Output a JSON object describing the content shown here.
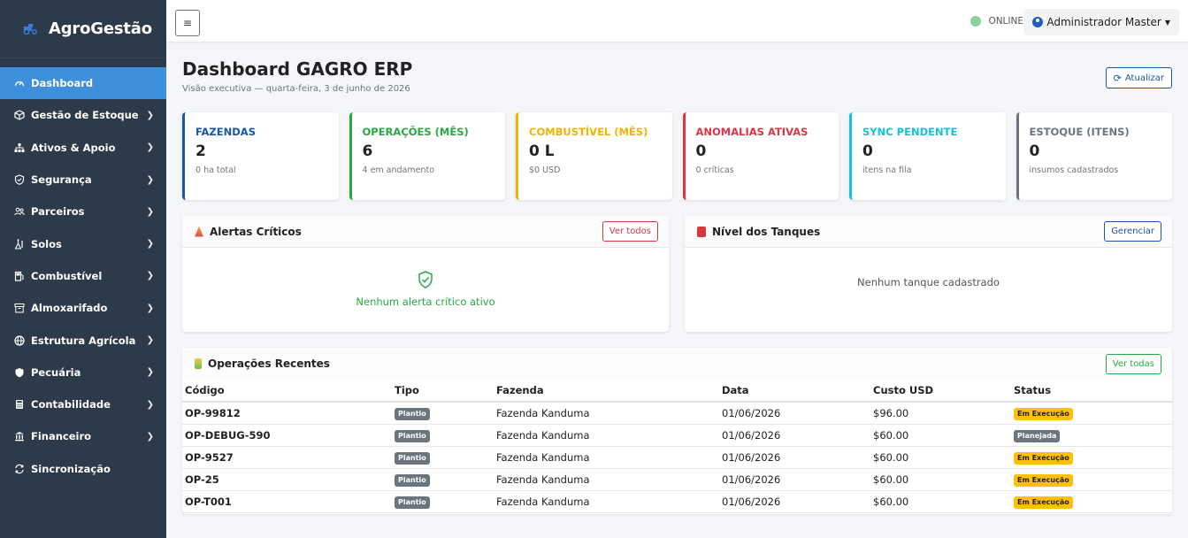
{
  "brand": {
    "name": "AgroGestão"
  },
  "sidebar": {
    "items": [
      {
        "label": "Dashboard",
        "icon": "gauge-icon",
        "active": true,
        "chevron": false
      },
      {
        "label": "Gestão de Estoque",
        "icon": "box-icon",
        "chevron": true
      },
      {
        "label": "Ativos & Apoio",
        "icon": "sitemap-icon",
        "chevron": true
      },
      {
        "label": "Segurança",
        "icon": "shield-icon",
        "chevron": true
      },
      {
        "label": "Parceiros",
        "icon": "people-icon",
        "chevron": true
      },
      {
        "label": "Solos",
        "icon": "flask-icon",
        "chevron": true
      },
      {
        "label": "Combustível",
        "icon": "fuel-icon",
        "chevron": true
      },
      {
        "label": "Almoxarifado",
        "icon": "archive-icon",
        "chevron": true
      },
      {
        "label": "Estrutura Agrícola",
        "icon": "globe-icon",
        "chevron": true
      },
      {
        "label": "Pecuária",
        "icon": "shield-fill-icon",
        "chevron": true
      },
      {
        "label": "Contabilidade",
        "icon": "calculator-icon",
        "chevron": true
      },
      {
        "label": "Financeiro",
        "icon": "bank-icon",
        "chevron": true
      },
      {
        "label": "Sincronização",
        "icon": "sync-icon",
        "chevron": false
      }
    ]
  },
  "topbar": {
    "toggle_icon": "≡",
    "status": "ONLINE",
    "user": "Administrador Master"
  },
  "header": {
    "title": "Dashboard GAGRO ERP",
    "subtitle": "Visão executiva — quarta-feira, 3 de junho de 2026",
    "refresh_label": "Atualizar"
  },
  "cards": [
    {
      "title": "FAZENDAS",
      "value": "2",
      "desc": "0 ha total",
      "color": "#1a56a6"
    },
    {
      "title": "OPERAÇÕES (MÊS)",
      "value": "6",
      "desc": "4 em andamento",
      "color": "#28a745"
    },
    {
      "title": "COMBUSTÍVEL (MÊS)",
      "value": "0 L",
      "desc": "$0 USD",
      "color": "#f0b400"
    },
    {
      "title": "ANOMALIAS ATIVAS",
      "value": "0",
      "desc": "0 críticas",
      "color": "#dc3545"
    },
    {
      "title": "SYNC PENDENTE",
      "value": "0",
      "desc": "itens na fila",
      "color": "#17c1d6"
    },
    {
      "title": "ESTOQUE (ITENS)",
      "value": "0",
      "desc": "insumos cadastrados",
      "color": "#6c757d"
    }
  ],
  "alerts": {
    "title": "Alertas Críticos",
    "button": "Ver todos",
    "empty": "Nenhum alerta crítico ativo"
  },
  "tanks": {
    "title": "Nível dos Tanques",
    "button": "Gerenciar",
    "empty": "Nenhum tanque cadastrado"
  },
  "operations": {
    "title": "Operações Recentes",
    "button": "Ver todas",
    "columns": [
      "Código",
      "Tipo",
      "Fazenda",
      "Data",
      "Custo USD",
      "Status"
    ],
    "rows": [
      {
        "code": "OP-99812",
        "type": "Plantio",
        "farm": "Fazenda Kanduma",
        "date": "01/06/2026",
        "cost": "$96.00",
        "status": "Em Execução",
        "status_color": "yellow"
      },
      {
        "code": "OP-DEBUG-590",
        "type": "Plantio",
        "farm": "Fazenda Kanduma",
        "date": "01/06/2026",
        "cost": "$60.00",
        "status": "Planejada",
        "status_color": "gray"
      },
      {
        "code": "OP-9527",
        "type": "Plantio",
        "farm": "Fazenda Kanduma",
        "date": "01/06/2026",
        "cost": "$60.00",
        "status": "Em Execução",
        "status_color": "yellow"
      },
      {
        "code": "OP-25",
        "type": "Plantio",
        "farm": "Fazenda Kanduma",
        "date": "01/06/2026",
        "cost": "$60.00",
        "status": "Em Execução",
        "status_color": "yellow"
      },
      {
        "code": "OP-T001",
        "type": "Plantio",
        "farm": "Fazenda Kanduma",
        "date": "01/06/2026",
        "cost": "$60.00",
        "status": "Em Execução",
        "status_color": "yellow"
      }
    ]
  }
}
